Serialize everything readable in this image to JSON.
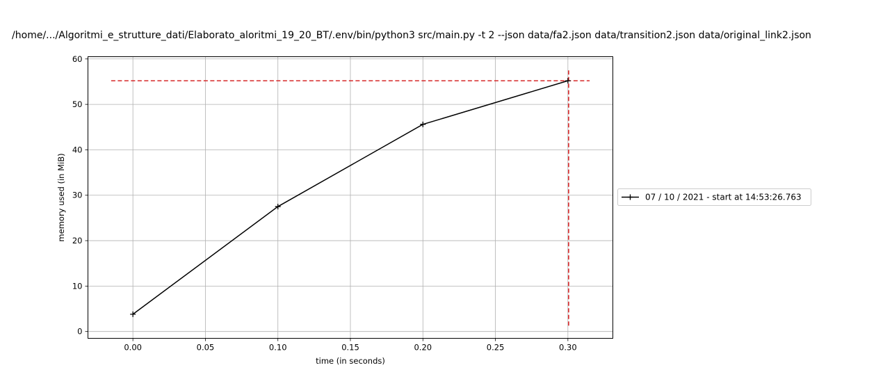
{
  "chart_data": {
    "type": "line",
    "title": "/home/.../Algoritmi_e_strutture_dati/Elaborato_aloritmi_19_20_BT/.env/bin/python3 src/main.py -t 2 --json data/fa2.json data/transition2.json data/original_link2.json",
    "xlabel": "time (in seconds)",
    "ylabel": "memory used (in MiB)",
    "xlim": [
      -0.031,
      0.331
    ],
    "ylim": [
      -1.5,
      60.5
    ],
    "xticks": [
      0.0,
      0.05,
      0.1,
      0.15,
      0.2,
      0.25,
      0.3
    ],
    "xtick_labels": [
      "0.00",
      "0.05",
      "0.10",
      "0.15",
      "0.20",
      "0.25",
      "0.30"
    ],
    "yticks": [
      0,
      10,
      20,
      30,
      40,
      50,
      60
    ],
    "ytick_labels": [
      "0",
      "10",
      "20",
      "30",
      "40",
      "50",
      "60"
    ],
    "grid": true,
    "legend_position": "outside-right",
    "series": [
      {
        "name": "07 / 10 / 2021 - start at 14:53:26.763",
        "color": "#000000",
        "marker": "+",
        "x": [
          0.0,
          0.1,
          0.2,
          0.3
        ],
        "y": [
          3.8,
          27.5,
          45.6,
          55.2
        ]
      }
    ],
    "reference_lines": [
      {
        "orientation": "horizontal",
        "y": 55.2,
        "x_from": -0.015,
        "x_to": 0.315,
        "color": "#d62728",
        "style": "dashed"
      },
      {
        "orientation": "vertical",
        "x": 0.3005,
        "y_from": 1.3,
        "y_to": 57.6,
        "color": "#d62728",
        "style": "dashed"
      }
    ]
  }
}
